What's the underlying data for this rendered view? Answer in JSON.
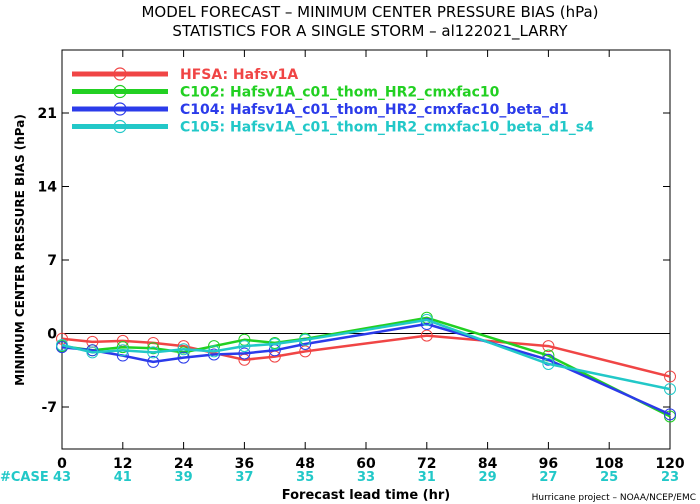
{
  "chart_data": {
    "type": "line",
    "title_line1": "MODEL FORECAST – MINIMUM CENTER PRESSURE BIAS (hPa)",
    "title_line2": "STATISTICS FOR A SINGLE STORM – al122021_LARRY",
    "ylabel": "MINIMUM CENTER PRESSURE BIAS (hPa)",
    "xlabel": "Forecast lead time (hr)",
    "credit": "Hurricane project – NOAA/NCEP/EMC",
    "case_label": "#CASE",
    "xlim": [
      0,
      120
    ],
    "ylim": [
      -11,
      27
    ],
    "xticks": [
      0,
      12,
      24,
      36,
      48,
      60,
      72,
      84,
      96,
      108,
      120
    ],
    "yticks": [
      -7,
      0,
      7,
      14,
      21
    ],
    "case_counts": [
      "43",
      "41",
      "39",
      "37",
      "35",
      "33",
      "31",
      "29",
      "27",
      "25",
      "23"
    ],
    "zero_line": true,
    "legend_position": "top-left",
    "x": [
      0,
      6,
      12,
      18,
      24,
      30,
      36,
      42,
      48,
      72,
      96,
      120
    ],
    "series": [
      {
        "name": "HFSA: Hafsv1A",
        "color": "#f04545",
        "x": [
          0,
          6,
          12,
          18,
          24,
          36,
          42,
          48,
          72,
          96,
          120
        ],
        "values": [
          -0.5,
          -0.8,
          -0.7,
          -0.9,
          -1.2,
          -2.5,
          -2.2,
          -1.7,
          -0.2,
          -1.2,
          -4.1
        ]
      },
      {
        "name": "C102: Hafsv1A_c01_thom_HR2_cmxfac10",
        "color": "#22d022",
        "x": [
          0,
          6,
          12,
          18,
          24,
          30,
          36,
          42,
          48,
          72,
          96,
          120
        ],
        "values": [
          -1.2,
          -1.6,
          -1.3,
          -1.4,
          -1.8,
          -1.2,
          -0.6,
          -0.9,
          -0.5,
          1.5,
          -2.1,
          -7.9
        ]
      },
      {
        "name": "C104: Hafsv1A_c01_thom_HR2_cmxfac10_beta_d1",
        "color": "#2b3bea",
        "x": [
          0,
          6,
          12,
          18,
          24,
          30,
          36,
          42,
          48,
          72,
          96,
          120
        ],
        "values": [
          -1.3,
          -1.6,
          -2.1,
          -2.7,
          -2.3,
          -2.0,
          -1.9,
          -1.6,
          -1.0,
          0.9,
          -2.5,
          -7.7
        ]
      },
      {
        "name": "C105: Hafsv1A_c01_thom_HR2_cmxfac10_beta_d1_s4",
        "color": "#22c8c8",
        "x": [
          0,
          6,
          12,
          18,
          24,
          30,
          36,
          42,
          48,
          72,
          96,
          120
        ],
        "values": [
          -1.1,
          -1.8,
          -1.6,
          -1.8,
          -1.5,
          -1.7,
          -1.2,
          -1.0,
          -0.6,
          1.3,
          -2.9,
          -5.3
        ]
      }
    ]
  }
}
